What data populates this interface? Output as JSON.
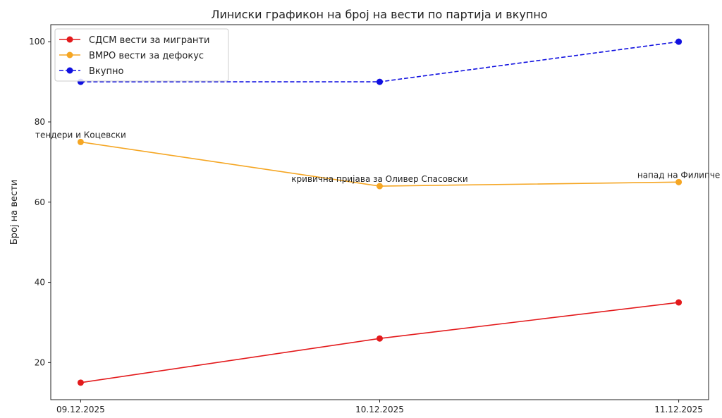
{
  "chart_data": {
    "type": "line",
    "title": "Линиски графикон на број на вести по партија и вкупно",
    "xlabel": "",
    "ylabel": "Број на вести",
    "categories": [
      "09.12.2025",
      "10.12.2025",
      "11.12.2025"
    ],
    "ylim": [
      10.75,
      104.25
    ],
    "yticks": [
      20,
      40,
      60,
      80,
      100
    ],
    "grid": false,
    "legend_position": "top-left",
    "series": [
      {
        "name": "СДСМ вести за мигранти",
        "values": [
          15,
          26,
          35
        ],
        "color": "#e31a1c",
        "style": "solid",
        "marker": "circle"
      },
      {
        "name": "ВМРО вести за дефокус",
        "values": [
          75,
          64,
          65
        ],
        "color": "#f5a623",
        "style": "solid",
        "marker": "circle"
      },
      {
        "name": "Вкупно",
        "values": [
          90,
          90,
          100
        ],
        "color": "#1010e0",
        "style": "dashed",
        "marker": "circle"
      }
    ],
    "annotations": [
      {
        "text": "тендери и Коцевски",
        "x": "09.12.2025",
        "y": 75
      },
      {
        "text": "кривична пријава за Оливер Спасовски",
        "x": "10.12.2025",
        "y": 64
      },
      {
        "text": "напад на Филипче",
        "x": "11.12.2025",
        "y": 65
      }
    ]
  }
}
